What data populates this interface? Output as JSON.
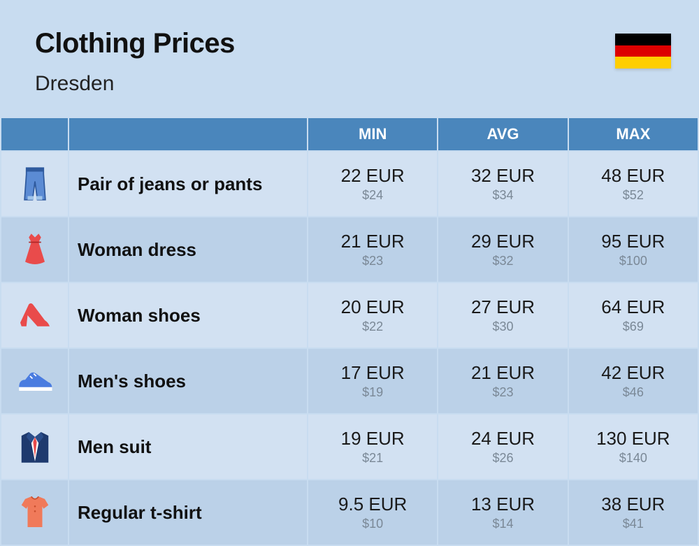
{
  "header": {
    "title": "Clothing Prices",
    "subtitle": "Dresden"
  },
  "flag": {
    "stripes": [
      "#000000",
      "#dd0000",
      "#ffce00"
    ]
  },
  "table": {
    "headers": {
      "min": "MIN",
      "avg": "AVG",
      "max": "MAX"
    },
    "header_bg": "#4a86bc",
    "header_fg": "#ffffff",
    "row_bg_even": "#d2e1f2",
    "row_bg_odd": "#bbd1e8",
    "main_text_color": "#1a1a1a",
    "sub_text_color": "#7a8896",
    "rows": [
      {
        "icon": "jeans",
        "label": "Pair of jeans or pants",
        "min_eur": "22 EUR",
        "min_usd": "$24",
        "avg_eur": "32 EUR",
        "avg_usd": "$34",
        "max_eur": "48 EUR",
        "max_usd": "$52"
      },
      {
        "icon": "dress",
        "label": "Woman dress",
        "min_eur": "21 EUR",
        "min_usd": "$23",
        "avg_eur": "29 EUR",
        "avg_usd": "$32",
        "max_eur": "95 EUR",
        "max_usd": "$100"
      },
      {
        "icon": "heel",
        "label": "Woman shoes",
        "min_eur": "20 EUR",
        "min_usd": "$22",
        "avg_eur": "27 EUR",
        "avg_usd": "$30",
        "max_eur": "64 EUR",
        "max_usd": "$69"
      },
      {
        "icon": "sneaker",
        "label": "Men's shoes",
        "min_eur": "17 EUR",
        "min_usd": "$19",
        "avg_eur": "21 EUR",
        "avg_usd": "$23",
        "max_eur": "42 EUR",
        "max_usd": "$46"
      },
      {
        "icon": "suit",
        "label": "Men suit",
        "min_eur": "19 EUR",
        "min_usd": "$21",
        "avg_eur": "24 EUR",
        "avg_usd": "$26",
        "max_eur": "130 EUR",
        "max_usd": "$140"
      },
      {
        "icon": "tshirt",
        "label": "Regular t-shirt",
        "min_eur": "9.5 EUR",
        "min_usd": "$10",
        "avg_eur": "13 EUR",
        "avg_usd": "$14",
        "max_eur": "38 EUR",
        "max_usd": "$41"
      }
    ]
  },
  "icons": {
    "jeans_fill": "#5b8bd4",
    "jeans_stroke": "#2f5a9e",
    "dress_fill": "#e94b4b",
    "heel_fill": "#e94b4b",
    "sneaker_fill": "#4a7ce0",
    "suit_fill": "#1e3a6e",
    "suit_tie": "#e94b4b",
    "tshirt_fill": "#f07a5a"
  }
}
